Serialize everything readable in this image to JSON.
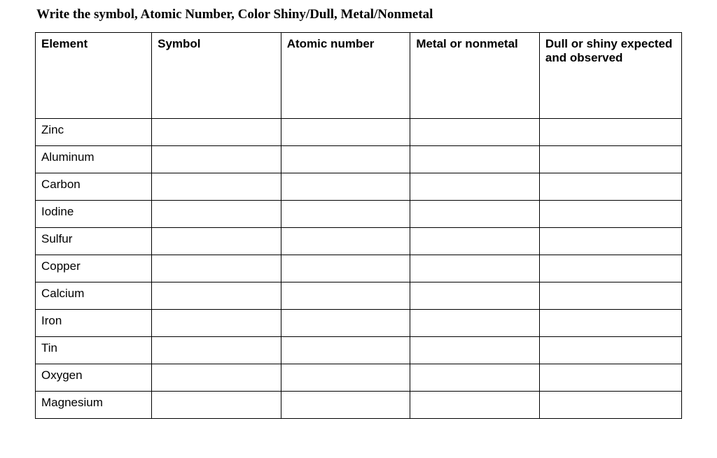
{
  "instruction": "Write the symbol, Atomic Number,  Color Shiny/Dull,  Metal/Nonmetal",
  "table": {
    "columns": [
      "Element",
      "Symbol",
      "Atomic number",
      "Metal or nonmetal",
      "Dull or shiny expected and observed"
    ],
    "rows": [
      {
        "element": "Zinc",
        "symbol": "",
        "atomic_number": "",
        "metal_or_nonmetal": "",
        "dull_or_shiny": ""
      },
      {
        "element": "Aluminum",
        "symbol": "",
        "atomic_number": "",
        "metal_or_nonmetal": "",
        "dull_or_shiny": ""
      },
      {
        "element": "Carbon",
        "symbol": "",
        "atomic_number": "",
        "metal_or_nonmetal": "",
        "dull_or_shiny": ""
      },
      {
        "element": "Iodine",
        "symbol": "",
        "atomic_number": "",
        "metal_or_nonmetal": "",
        "dull_or_shiny": ""
      },
      {
        "element": "Sulfur",
        "symbol": "",
        "atomic_number": "",
        "metal_or_nonmetal": "",
        "dull_or_shiny": ""
      },
      {
        "element": "Copper",
        "symbol": "",
        "atomic_number": "",
        "metal_or_nonmetal": "",
        "dull_or_shiny": ""
      },
      {
        "element": "Calcium",
        "symbol": "",
        "atomic_number": "",
        "metal_or_nonmetal": "",
        "dull_or_shiny": ""
      },
      {
        "element": "Iron",
        "symbol": "",
        "atomic_number": "",
        "metal_or_nonmetal": "",
        "dull_or_shiny": ""
      },
      {
        "element": "Tin",
        "symbol": "",
        "atomic_number": "",
        "metal_or_nonmetal": "",
        "dull_or_shiny": ""
      },
      {
        "element": "Oxygen",
        "symbol": "",
        "atomic_number": "",
        "metal_or_nonmetal": "",
        "dull_or_shiny": ""
      },
      {
        "element": "Magnesium",
        "symbol": "",
        "atomic_number": "",
        "metal_or_nonmetal": "",
        "dull_or_shiny": ""
      }
    ],
    "border_color": "#000000",
    "background_color": "#ffffff",
    "header_fontsize": 17,
    "body_fontsize": 17
  }
}
